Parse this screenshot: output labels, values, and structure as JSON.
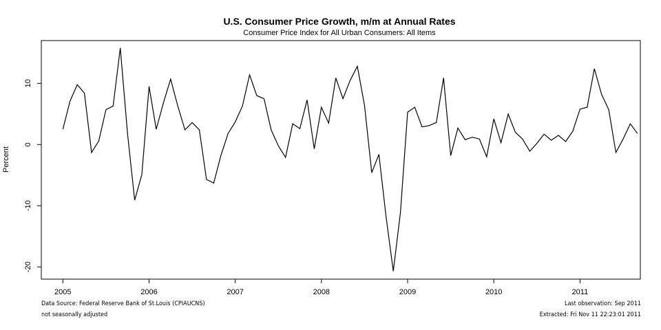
{
  "chart_data": {
    "type": "line",
    "title": "U.S. Consumer Price Growth, m/m at Annual Rates",
    "subtitle": "Consumer Price Index for All Urban Consumers: All Items",
    "xlabel": "",
    "ylabel": "Percent",
    "xlim": [
      2004.75,
      2011.7
    ],
    "ylim": [
      -22,
      17
    ],
    "x_ticks": [
      2005,
      2006,
      2007,
      2008,
      2009,
      2010,
      2011
    ],
    "x_tick_labels": [
      "2005",
      "2006",
      "2007",
      "2008",
      "2009",
      "2010",
      "2011"
    ],
    "y_ticks": [
      -20,
      -10,
      0,
      10
    ],
    "y_tick_labels": [
      "-20",
      "-10",
      "0",
      "10"
    ],
    "grid": false,
    "color": "#000000",
    "series": [
      {
        "start": "2005-01",
        "frequency": "monthly",
        "values": [
          2.5,
          7.1,
          9.8,
          8.4,
          -1.3,
          0.6,
          5.7,
          6.3,
          15.8,
          1.8,
          -9.1,
          -4.9,
          9.5,
          2.5,
          6.8,
          10.7,
          6.3,
          2.4,
          3.6,
          2.4,
          -5.7,
          -6.3,
          -1.8,
          1.8,
          3.7,
          6.3,
          11.4,
          8.0,
          7.5,
          2.4,
          -0.2,
          -2.1,
          3.4,
          2.6,
          7.3,
          -0.7,
          6.1,
          3.5,
          10.9,
          7.5,
          10.5,
          12.8,
          6.4,
          -4.6,
          -1.6,
          -11.8,
          -20.7,
          -11.1,
          5.3,
          6.1,
          2.9,
          3.1,
          3.6,
          10.9,
          -1.8,
          2.7,
          0.8,
          1.2,
          0.9,
          -2.0,
          4.2,
          0.3,
          5.0,
          2.0,
          0.9,
          -1.1,
          0.2,
          1.7,
          0.7,
          1.5,
          0.5,
          2.2,
          5.8,
          6.1,
          12.4,
          8.2,
          5.7,
          -1.3,
          0.9,
          3.4,
          1.8
        ]
      }
    ]
  },
  "footer": {
    "source": "Data Source: Federal Reserve Bank of St.Louis (CPIAUCNS)",
    "adjustment": "not seasonally adjusted",
    "last_observation": "Last observation: Sep 2011",
    "extracted": "Extracted: Fri Nov 11 22:23:01 2011"
  }
}
